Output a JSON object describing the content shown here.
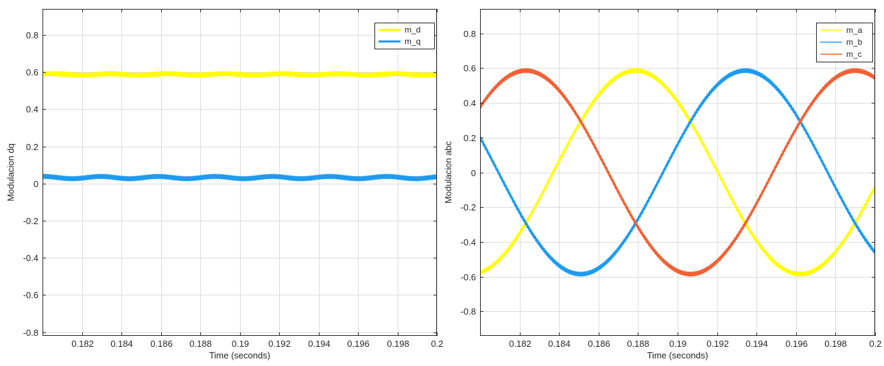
{
  "chart_data": [
    {
      "type": "line",
      "title": "",
      "xlabel": "Time (seconds)",
      "ylabel": "Modulacion dq",
      "xlim": [
        0.18,
        0.2
      ],
      "ylim": [
        -0.82,
        0.94
      ],
      "xticks": [
        0.182,
        0.184,
        0.186,
        0.188,
        0.19,
        0.192,
        0.194,
        0.196,
        0.198,
        0.2
      ],
      "xtick_labels": [
        "0.182",
        "0.184",
        "0.186",
        "0.188",
        "0.19",
        "0.192",
        "0.194",
        "0.196",
        "0.198",
        "0.2"
      ],
      "yticks": [
        -0.8,
        -0.6,
        -0.4,
        -0.2,
        0,
        0.2,
        0.4,
        0.6,
        0.8
      ],
      "ytick_labels": [
        "-0.8",
        "-0.6",
        "-0.4",
        "-0.2",
        "0",
        "0.2",
        "0.4",
        "0.6",
        "0.8"
      ],
      "grid": true,
      "legend_position": "top-right",
      "series": [
        {
          "name": "m_d",
          "color": "#ffff00",
          "kind": "constant",
          "mean": 0.587,
          "ripple": 0.012,
          "wobble": 0.004
        },
        {
          "name": "m_q",
          "color": "#1e9bf0",
          "kind": "constant",
          "mean": 0.032,
          "ripple": 0.012,
          "wobble": 0.006
        }
      ]
    },
    {
      "type": "line",
      "title": "",
      "xlabel": "Time (seconds)",
      "ylabel": "Modulacion abc",
      "xlim": [
        0.18,
        0.2
      ],
      "ylim": [
        -0.94,
        0.94
      ],
      "xticks": [
        0.182,
        0.184,
        0.186,
        0.188,
        0.19,
        0.192,
        0.194,
        0.196,
        0.198,
        0.2
      ],
      "xtick_labels": [
        "0.182",
        "0.184",
        "0.186",
        "0.188",
        "0.19",
        "0.192",
        "0.194",
        "0.196",
        "0.198",
        "0.2"
      ],
      "yticks": [
        -0.8,
        -0.6,
        -0.4,
        -0.2,
        0,
        0.2,
        0.4,
        0.6,
        0.8
      ],
      "ytick_labels": [
        "-0.8",
        "-0.6",
        "-0.4",
        "-0.2",
        "0",
        "0.2",
        "0.4",
        "0.6",
        "0.8"
      ],
      "grid": true,
      "legend_position": "top-right",
      "series": [
        {
          "name": "m_a",
          "color": "#ffff00",
          "kind": "sine",
          "amplitude": 0.585,
          "peak_x": 0.18787,
          "period": 0.01667,
          "ripple": 0.012
        },
        {
          "name": "m_b",
          "color": "#1e9bf0",
          "kind": "sine",
          "amplitude": 0.585,
          "peak_x": 0.19343,
          "period": 0.01667,
          "ripple": 0.012
        },
        {
          "name": "m_c",
          "color": "#f26135",
          "kind": "sine",
          "amplitude": 0.585,
          "peak_x": 0.18232,
          "period": 0.01667,
          "ripple": 0.012
        }
      ]
    }
  ]
}
